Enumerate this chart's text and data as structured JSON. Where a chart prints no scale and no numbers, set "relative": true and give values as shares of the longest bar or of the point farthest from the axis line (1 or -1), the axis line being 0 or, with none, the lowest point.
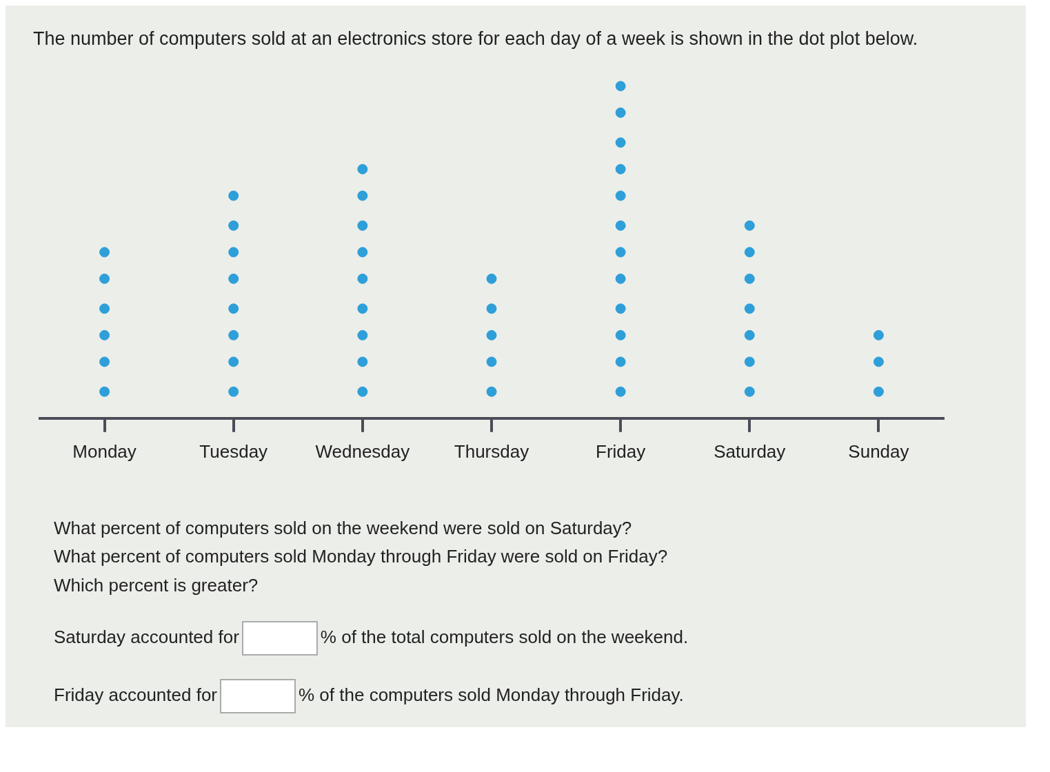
{
  "chart_data": {
    "type": "scatter",
    "title": "The number of computers sold at an electronics store for each day of a week is shown in the dot plot below.",
    "categories": [
      "Monday",
      "Tuesday",
      "Wednesday",
      "Thursday",
      "Friday",
      "Saturday",
      "Sunday"
    ],
    "series": [
      {
        "color": "#2e9fd8",
        "x": [
          "Monday",
          "Monday",
          "Monday",
          "Monday",
          "Monday",
          "Monday",
          "Tuesday",
          "Tuesday",
          "Tuesday",
          "Tuesday",
          "Tuesday",
          "Tuesday",
          "Tuesday",
          "Tuesday",
          "Wednesday",
          "Wednesday",
          "Wednesday",
          "Wednesday",
          "Wednesday",
          "Wednesday",
          "Wednesday",
          "Wednesday",
          "Wednesday",
          "Thursday",
          "Thursday",
          "Thursday",
          "Thursday",
          "Thursday",
          "Friday",
          "Friday",
          "Friday",
          "Friday",
          "Friday",
          "Friday",
          "Friday",
          "Friday",
          "Friday",
          "Friday",
          "Friday",
          "Friday",
          "Saturday",
          "Saturday",
          "Saturday",
          "Saturday",
          "Saturday",
          "Saturday",
          "Saturday",
          "Sunday",
          "Sunday",
          "Sunday"
        ],
        "values": [
          0.08,
          0.17,
          0.25,
          0.33,
          0.42,
          0.5,
          0.08,
          0.17,
          0.25,
          0.33,
          0.42,
          0.5,
          0.58,
          0.67,
          0.08,
          0.17,
          0.25,
          0.33,
          0.42,
          0.5,
          0.58,
          0.67,
          0.75,
          0.08,
          0.17,
          0.25,
          0.33,
          0.42,
          0.08,
          0.17,
          0.25,
          0.33,
          0.42,
          0.5,
          0.58,
          0.67,
          0.75,
          0.83,
          0.92,
          1,
          0.08,
          0.17,
          0.25,
          0.33,
          0.42,
          0.5,
          0.58,
          0.08,
          0.17,
          0.25
        ]
      }
    ],
    "marker": "circle",
    "relative": true,
    "annotations": [
      "What percent of computers sold on the weekend were sold on Saturday?",
      "What percent of computers sold Monday through Friday were sold on Friday?",
      "Which percent is greater?",
      "Saturday accounted for",
      "% of the total computers sold on the weekend.",
      "Friday accounted for",
      "% of the computers sold Monday through Friday."
    ]
  }
}
